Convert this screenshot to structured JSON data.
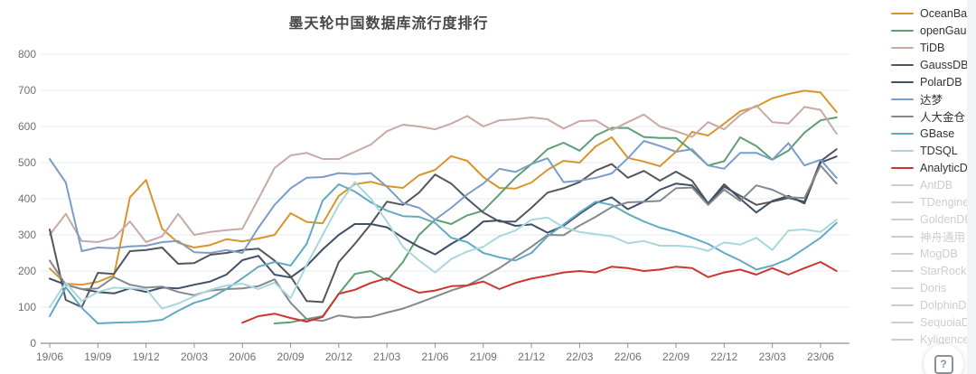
{
  "page": {
    "title": "墨天轮中国数据库流行度排行"
  },
  "help_button": {
    "icon": "boxed-question-icon",
    "glyph": "?"
  },
  "chart_data": {
    "type": "line",
    "title": "墨天轮中国数据库流行度排行",
    "xlabel": "",
    "ylabel": "",
    "ylim": [
      0,
      800
    ],
    "y_ticks": [
      0,
      100,
      200,
      300,
      400,
      500,
      600,
      700,
      800
    ],
    "grid": true,
    "legend_position": "right",
    "x": [
      "19/06",
      "19/07",
      "19/08",
      "19/09",
      "19/10",
      "19/11",
      "19/12",
      "20/01",
      "20/02",
      "20/03",
      "20/04",
      "20/05",
      "20/06",
      "20/07",
      "20/08",
      "20/09",
      "20/10",
      "20/11",
      "20/12",
      "21/01",
      "21/02",
      "21/03",
      "21/04",
      "21/05",
      "21/06",
      "21/07",
      "21/08",
      "21/09",
      "21/10",
      "21/11",
      "21/12",
      "22/01",
      "22/02",
      "22/03",
      "22/04",
      "22/05",
      "22/06",
      "22/07",
      "22/08",
      "22/09",
      "22/10",
      "22/11",
      "22/12",
      "23/01",
      "23/02",
      "23/03",
      "23/04",
      "23/05",
      "23/06",
      "23/07"
    ],
    "x_tick_labels": [
      "19/06",
      "19/09",
      "19/12",
      "20/03",
      "20/06",
      "20/09",
      "20/12",
      "21/03",
      "21/06",
      "21/09",
      "21/12",
      "22/03",
      "22/06",
      "22/09",
      "22/12",
      "23/03",
      "23/06"
    ],
    "x_label_interval": 3,
    "series": [
      {
        "name": "OceanBase",
        "color": "#d9952c",
        "active": true,
        "values": [
          207,
          165,
          162,
          170,
          188,
          404,
          452,
          317,
          278,
          265,
          272,
          288,
          282,
          290,
          300,
          360,
          336,
          332,
          408,
          440,
          447,
          435,
          430,
          465,
          480,
          518,
          505,
          460,
          430,
          428,
          445,
          480,
          505,
          500,
          545,
          570,
          513,
          503,
          490,
          530,
          585,
          575,
          608,
          642,
          655,
          678,
          690,
          699,
          694,
          640
        ]
      },
      {
        "name": "openGauss",
        "color": "#5f9e75",
        "active": true,
        "values": [
          null,
          null,
          null,
          null,
          null,
          null,
          null,
          null,
          null,
          null,
          null,
          null,
          null,
          null,
          55,
          58,
          67,
          75,
          137,
          192,
          200,
          173,
          225,
          300,
          342,
          330,
          354,
          367,
          412,
          458,
          496,
          537,
          555,
          533,
          575,
          596,
          596,
          571,
          568,
          568,
          533,
          492,
          504,
          570,
          546,
          508,
          533,
          583,
          617,
          625
        ]
      },
      {
        "name": "TiDB",
        "color": "#c9a9a4",
        "active": true,
        "values": [
          300,
          358,
          283,
          280,
          292,
          337,
          280,
          296,
          358,
          300,
          308,
          313,
          317,
          400,
          485,
          520,
          527,
          510,
          510,
          530,
          550,
          587,
          605,
          600,
          592,
          608,
          629,
          600,
          617,
          620,
          625,
          620,
          594,
          615,
          617,
          590,
          612,
          633,
          600,
          587,
          571,
          612,
          592,
          632,
          658,
          612,
          608,
          654,
          646,
          580
        ]
      },
      {
        "name": "GaussDB",
        "color": "#53575c",
        "active": true,
        "values": [
          315,
          120,
          100,
          195,
          192,
          255,
          258,
          265,
          220,
          222,
          245,
          250,
          258,
          262,
          229,
          185,
          117,
          114,
          225,
          275,
          330,
          392,
          383,
          417,
          467,
          442,
          400,
          362,
          337,
          337,
          375,
          417,
          429,
          446,
          478,
          496,
          458,
          477,
          450,
          475,
          450,
          387,
          433,
          408,
          383,
          392,
          402,
          392,
          504,
          537
        ]
      },
      {
        "name": "PolarDB",
        "color": "#3f4f66",
        "active": true,
        "values": [
          179,
          162,
          150,
          142,
          138,
          152,
          142,
          154,
          152,
          162,
          171,
          190,
          230,
          242,
          190,
          182,
          214,
          260,
          300,
          330,
          330,
          321,
          292,
          267,
          246,
          275,
          300,
          337,
          340,
          325,
          329,
          306,
          325,
          358,
          388,
          404,
          371,
          392,
          425,
          442,
          437,
          387,
          440,
          400,
          362,
          394,
          408,
          387,
          500,
          517
        ]
      },
      {
        "name": "达梦",
        "color": "#7b9dc7",
        "active": true,
        "values": [
          510,
          445,
          255,
          265,
          263,
          268,
          270,
          280,
          283,
          252,
          250,
          258,
          250,
          320,
          383,
          429,
          458,
          460,
          471,
          468,
          471,
          433,
          388,
          375,
          342,
          375,
          412,
          442,
          483,
          474,
          496,
          512,
          446,
          450,
          458,
          470,
          512,
          560,
          546,
          530,
          537,
          492,
          483,
          527,
          527,
          508,
          554,
          492,
          508,
          458
        ]
      },
      {
        "name": "人大金仓",
        "color": "#84898f",
        "active": true,
        "values": [
          229,
          162,
          150,
          152,
          183,
          162,
          154,
          157,
          142,
          133,
          146,
          150,
          152,
          158,
          177,
          112,
          67,
          62,
          77,
          71,
          73,
          85,
          96,
          112,
          129,
          146,
          160,
          183,
          208,
          238,
          267,
          300,
          299,
          326,
          350,
          377,
          390,
          392,
          394,
          429,
          431,
          383,
          425,
          394,
          437,
          425,
          404,
          402,
          492,
          442
        ]
      },
      {
        "name": "GBase",
        "color": "#62aac2",
        "active": true,
        "values": [
          75,
          155,
          98,
          55,
          57,
          58,
          60,
          65,
          90,
          112,
          125,
          150,
          180,
          212,
          225,
          215,
          275,
          395,
          440,
          420,
          390,
          367,
          352,
          350,
          333,
          292,
          280,
          250,
          238,
          229,
          250,
          296,
          329,
          362,
          392,
          383,
          358,
          337,
          320,
          308,
          292,
          275,
          250,
          229,
          204,
          215,
          233,
          262,
          292,
          333
        ]
      },
      {
        "name": "TDSQL",
        "color": "#a8d8dd",
        "active": true,
        "values": [
          100,
          168,
          117,
          142,
          154,
          152,
          150,
          96,
          110,
          130,
          148,
          160,
          165,
          150,
          168,
          125,
          217,
          300,
          383,
          446,
          400,
          337,
          267,
          229,
          196,
          233,
          254,
          267,
          296,
          312,
          342,
          348,
          321,
          308,
          302,
          296,
          277,
          283,
          270,
          270,
          267,
          256,
          279,
          273,
          292,
          258,
          312,
          315,
          308,
          342
        ]
      },
      {
        "name": "AnalyticDB",
        "color": "#cc3530",
        "active": true,
        "values": [
          null,
          null,
          null,
          null,
          null,
          null,
          null,
          null,
          null,
          null,
          null,
          null,
          57,
          75,
          82,
          70,
          60,
          73,
          137,
          148,
          167,
          180,
          158,
          140,
          146,
          158,
          160,
          171,
          150,
          167,
          179,
          187,
          196,
          200,
          196,
          212,
          208,
          200,
          204,
          212,
          208,
          183,
          196,
          204,
          190,
          208,
          190,
          208,
          225,
          200
        ]
      },
      {
        "name": "AntDB",
        "color": "#c9ced4",
        "active": false,
        "values": []
      },
      {
        "name": "TDengine",
        "color": "#c9ced4",
        "active": false,
        "values": []
      },
      {
        "name": "GoldenDB",
        "color": "#c9ced4",
        "active": false,
        "values": []
      },
      {
        "name": "神舟通用",
        "color": "#c9ced4",
        "active": false,
        "values": []
      },
      {
        "name": "MogDB",
        "color": "#c9ced4",
        "active": false,
        "values": []
      },
      {
        "name": "StarRocks",
        "color": "#c9ced4",
        "active": false,
        "values": []
      },
      {
        "name": "Doris",
        "color": "#c9ced4",
        "active": false,
        "values": []
      },
      {
        "name": "DolphinDB",
        "color": "#c9ced4",
        "active": false,
        "values": []
      },
      {
        "name": "SequoiaDB",
        "color": "#c9ced4",
        "active": false,
        "values": []
      },
      {
        "name": "Kyligence",
        "color": "#c9ced4",
        "active": false,
        "values": []
      }
    ],
    "style": {
      "grid_color": "#e4ebf2",
      "axis_line_color": "#8d939a",
      "tick_label_color": "#6e7079",
      "title_color": "#464646"
    }
  }
}
